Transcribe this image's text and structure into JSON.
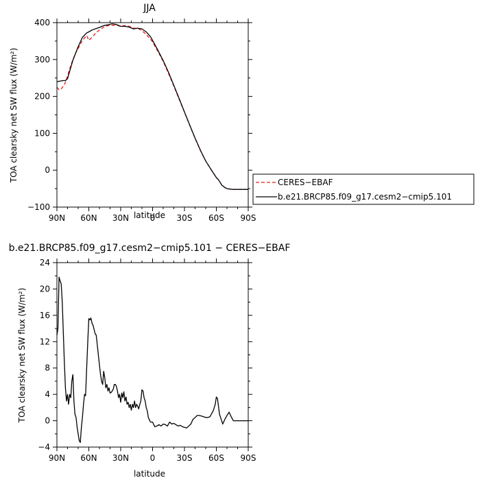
{
  "chart_data": [
    {
      "type": "line",
      "title": "JJA",
      "xlabel": "latitude",
      "ylabel": "TOA clearsky net SW flux (W/m²)",
      "xlim": [
        90,
        -90
      ],
      "ylim": [
        -100,
        400
      ],
      "xtick_values": [
        90,
        60,
        30,
        0,
        -30,
        -60,
        -90
      ],
      "xtick_labels": [
        "90N",
        "60N",
        "30N",
        "0",
        "30S",
        "60S",
        "90S"
      ],
      "ytick_values": [
        -100,
        0,
        100,
        200,
        300,
        400
      ],
      "ytick_labels": [
        "−100",
        "0",
        "100",
        "200",
        "300",
        "400"
      ],
      "legend_position": "right",
      "series": [
        {
          "name": "CERES−EBAF",
          "color": "#e41a1c",
          "dash": "dashed",
          "x": [
            90,
            88,
            86,
            84,
            82,
            80,
            78,
            75,
            72,
            70,
            66,
            62,
            60,
            57,
            54,
            50,
            46,
            42,
            38,
            34,
            30,
            26,
            22,
            18,
            14,
            10,
            6,
            2,
            0,
            -5,
            -10,
            -15,
            -20,
            -25,
            -30,
            -35,
            -40,
            -45,
            -50,
            -55,
            -60,
            -62,
            -65,
            -68,
            -70,
            -75,
            -80,
            -85,
            -90
          ],
          "y": [
            225,
            218,
            220,
            228,
            238,
            255,
            275,
            300,
            320,
            330,
            352,
            365,
            352,
            360,
            370,
            380,
            388,
            392,
            393,
            393,
            390,
            392,
            390,
            385,
            385,
            378,
            368,
            355,
            348,
            322,
            295,
            262,
            228,
            192,
            157,
            121,
            86,
            53,
            25,
            2,
            -20,
            -26,
            -40,
            -47,
            -50,
            -52,
            -52,
            -52,
            -52
          ]
        },
        {
          "name": "b.e21.BRCP85.f09_g17.cesm2−cmip5.101",
          "color": "#000000",
          "dash": "solid",
          "x": [
            90,
            88,
            86,
            84,
            82,
            80,
            78,
            75,
            72,
            70,
            66,
            62,
            60,
            57,
            54,
            50,
            46,
            42,
            38,
            34,
            30,
            26,
            22,
            18,
            14,
            10,
            6,
            2,
            0,
            -5,
            -10,
            -15,
            -20,
            -25,
            -30,
            -35,
            -40,
            -45,
            -50,
            -55,
            -60,
            -62,
            -65,
            -68,
            -70,
            -75,
            -80,
            -85,
            -90
          ],
          "y": [
            240,
            241,
            242,
            243,
            243,
            248,
            268,
            298,
            320,
            335,
            360,
            372,
            375,
            380,
            383,
            387,
            392,
            394,
            397,
            395,
            390,
            390,
            388,
            383,
            385,
            383,
            375,
            362,
            352,
            325,
            297,
            265,
            230,
            194,
            158,
            122,
            87,
            54,
            25,
            2,
            -20,
            -26,
            -40,
            -47,
            -50,
            -52,
            -52,
            -52,
            -52
          ]
        }
      ]
    },
    {
      "type": "line",
      "title": "b.e21.BRCP85.f09_g17.cesm2−cmip5.101 − CERES−EBAF",
      "xlabel": "latitude",
      "ylabel": "TOA clearsky net SW flux (W/m²)",
      "xlim": [
        90,
        -90
      ],
      "ylim": [
        -4,
        24
      ],
      "xtick_values": [
        90,
        60,
        30,
        0,
        -30,
        -60,
        -90
      ],
      "xtick_labels": [
        "90N",
        "60N",
        "30N",
        "0",
        "30S",
        "60S",
        "90S"
      ],
      "ytick_values": [
        -4,
        0,
        4,
        8,
        12,
        16,
        20,
        24
      ],
      "ytick_labels": [
        "−4",
        "0",
        "4",
        "8",
        "12",
        "16",
        "20",
        "24"
      ],
      "series": [
        {
          "color": "#000000",
          "x": [
            90,
            89,
            88,
            87,
            86,
            85,
            84,
            83,
            82,
            81,
            80,
            79,
            78,
            77,
            76,
            75,
            74,
            73,
            72,
            71,
            70,
            69,
            68,
            67,
            66,
            65,
            64,
            63,
            62,
            61,
            60,
            59,
            58,
            57,
            56,
            55,
            54,
            53,
            52,
            51,
            50,
            49,
            48,
            47,
            46,
            45,
            44,
            43,
            42,
            41,
            40,
            39,
            38,
            37,
            36,
            35,
            34,
            33,
            32,
            31,
            30,
            29,
            28,
            27,
            26,
            25,
            24,
            23,
            22,
            21,
            20,
            19,
            18,
            17,
            16,
            15,
            14,
            13,
            12,
            11,
            10,
            9,
            8,
            7,
            6,
            5,
            4,
            2,
            0,
            -2,
            -4,
            -6,
            -8,
            -10,
            -12,
            -14,
            -16,
            -18,
            -20,
            -22,
            -24,
            -26,
            -28,
            -30,
            -32,
            -34,
            -36,
            -38,
            -40,
            -42,
            -44,
            -46,
            -48,
            -50,
            -52,
            -54,
            -56,
            -57,
            -58,
            -59,
            -60,
            -61,
            -62,
            -63,
            -64,
            -66,
            -68,
            -70,
            -72,
            -74,
            -76,
            -78,
            -80,
            -82,
            -84,
            -86,
            -88,
            -90
          ],
          "y": [
            13,
            14,
            21.8,
            21.2,
            20.8,
            18,
            13.5,
            9,
            5,
            3,
            4,
            2.5,
            4,
            3.5,
            6,
            7,
            3,
            1,
            0.5,
            -1,
            -2,
            -3,
            -3.3,
            -1,
            0.5,
            2.5,
            4,
            3.8,
            8,
            12,
            15.5,
            15.3,
            15.6,
            14.8,
            14.5,
            13.8,
            13.2,
            13,
            11.5,
            10,
            8.5,
            7,
            6,
            5.5,
            7.5,
            6.5,
            5,
            5.5,
            4.5,
            5,
            4.2,
            4.3,
            4.5,
            4.8,
            5.5,
            5.5,
            5.2,
            4.5,
            3.5,
            4,
            2.8,
            4.2,
            3.5,
            4.4,
            3,
            3.6,
            2.5,
            2.8,
            2,
            2.5,
            1.6,
            2.5,
            2,
            3,
            2,
            2.5,
            2.2,
            1.8,
            2.5,
            3,
            4.7,
            4.5,
            3.5,
            3,
            2,
            1.5,
            0.5,
            -0.2,
            -0.2,
            -0.9,
            -0.8,
            -0.6,
            -0.8,
            -0.5,
            -0.6,
            -0.8,
            -0.2,
            -0.5,
            -0.4,
            -0.6,
            -0.8,
            -0.7,
            -0.9,
            -1.0,
            -1.1,
            -0.8,
            -0.5,
            0.2,
            0.5,
            0.8,
            0.8,
            0.7,
            0.6,
            0.5,
            0.5,
            0.6,
            1.2,
            1.5,
            2.0,
            2.5,
            3.6,
            3.4,
            2.2,
            1.0,
            0.5,
            -0.5,
            0.2,
            0.8,
            1.3,
            0.6,
            0.0,
            0.0,
            0.0,
            0.0,
            0.0,
            0.0,
            0.0,
            0.0
          ]
        }
      ]
    }
  ]
}
